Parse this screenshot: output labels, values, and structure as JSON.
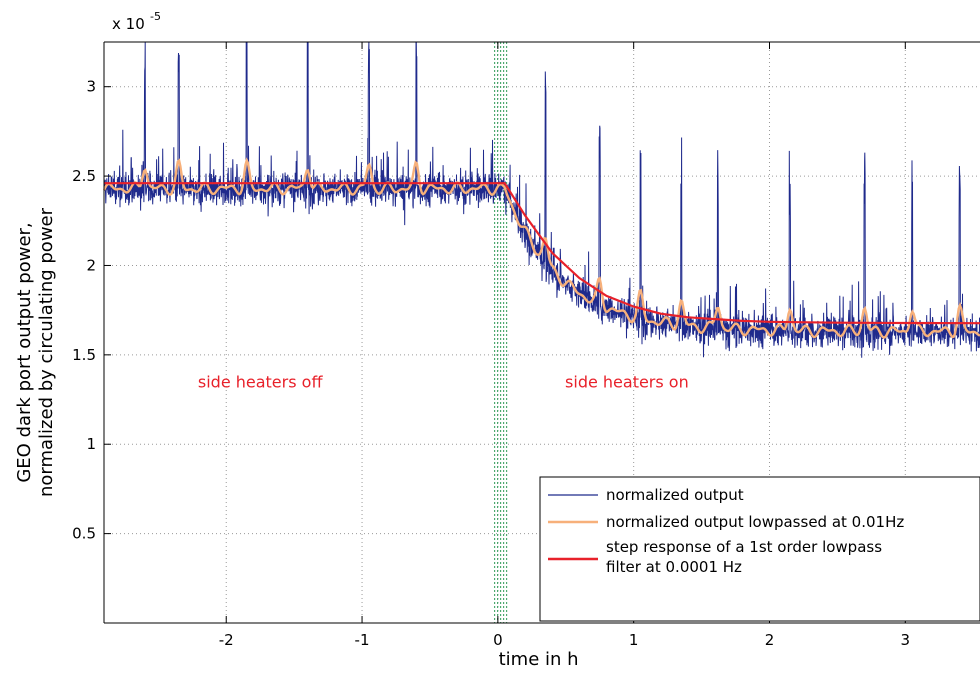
{
  "chart_data": {
    "type": "line",
    "title": "",
    "xlabel": "time in h",
    "ylabel": "GEO dark port output power,\nnormalized by circulating power",
    "ylabel_lines": [
      "GEO dark port output power,",
      "normalized by circulating power"
    ],
    "y_exponent_label": "x 10",
    "y_exponent_power": "-5",
    "xlim": [
      -2.9,
      3.55
    ],
    "ylim": [
      0,
      3.25
    ],
    "xticks": [
      -2,
      -1,
      0,
      1,
      2,
      3
    ],
    "xtick_labels": [
      "-2",
      "-1",
      "0",
      "1",
      "2",
      "3"
    ],
    "yticks": [
      0.5,
      1,
      1.5,
      2,
      2.5,
      3
    ],
    "ytick_labels": [
      "0.5",
      "1",
      "1.5",
      "2",
      "2.5",
      "3"
    ],
    "grid": true,
    "legend_position": "bottom-right",
    "step_time": 0.05,
    "annotations": [
      {
        "text": "side heaters off",
        "x": -1.75,
        "y": 1.35
      },
      {
        "text": "side heaters on",
        "x": 0.95,
        "y": 1.35
      }
    ],
    "series": [
      {
        "name": "normalized output",
        "color": "#1f2a8c",
        "description_level_before": 2.43,
        "level_after": 1.63,
        "spike_times": [
          -2.6,
          -2.35,
          -1.85,
          -1.4,
          -0.95,
          -0.6,
          0.35,
          0.75,
          1.05,
          1.35,
          1.62,
          2.15,
          2.7,
          3.05,
          3.4
        ]
      },
      {
        "name": "normalized output lowpassed at 0.01Hz",
        "color": "#f7b07a",
        "level_before": 2.45,
        "level_after": 1.67
      },
      {
        "name": "step response of a 1st order lowpass filter at 0.0001 Hz",
        "color": "#e8212a",
        "x": [
          -2.9,
          0.05,
          0.2,
          0.4,
          0.6,
          0.8,
          1.0,
          1.2,
          1.4,
          1.6,
          1.8,
          2.0,
          2.5,
          3.0,
          3.55
        ],
        "y": [
          2.46,
          2.46,
          2.28,
          2.07,
          1.93,
          1.83,
          1.77,
          1.73,
          1.71,
          1.7,
          1.69,
          1.685,
          1.68,
          1.678,
          1.677
        ]
      }
    ],
    "legend_entries": [
      {
        "label_lines": [
          "normalized output"
        ],
        "color": "#1f2a8c"
      },
      {
        "label_lines": [
          "normalized output lowpassed at 0.01Hz"
        ],
        "color": "#f7b07a"
      },
      {
        "label_lines": [
          "step response of a 1st order lowpass",
          "filter at 0.0001 Hz"
        ],
        "color": "#e8212a"
      }
    ]
  }
}
